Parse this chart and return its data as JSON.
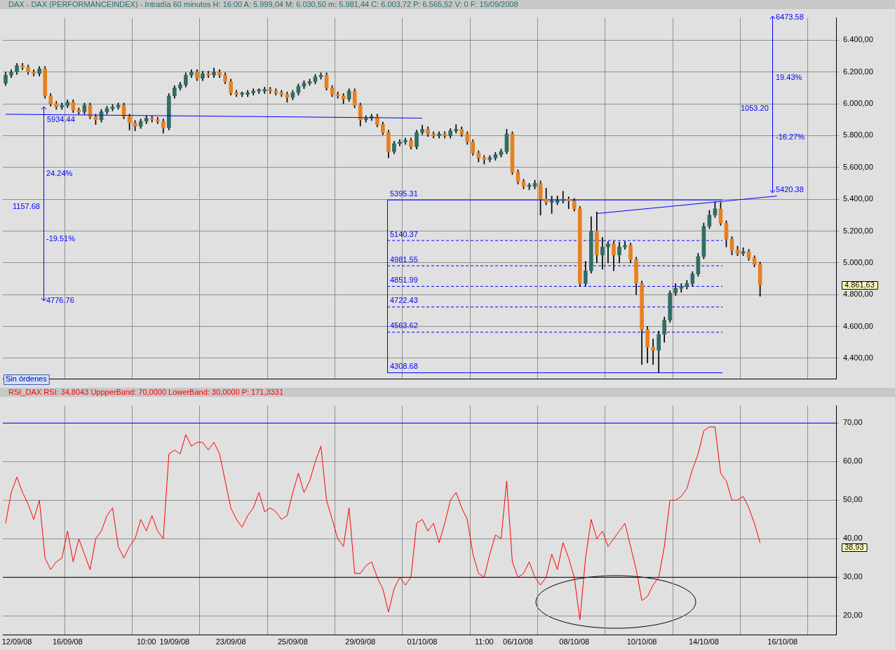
{
  "chart_data": [
    {
      "type": "candlestick",
      "title": "DAX - DAX (PERFORMANCEINDEX) - Intradía 60 minutos  H: 16:00  A: 5.999,04  M: 6.030,50  m: 5.981,44  C: 6.003,72  P: 6.565,52  V: 0  F: 15/09/2008",
      "categories": [
        null,
        null,
        null,
        null,
        null,
        null,
        null,
        null,
        null,
        null,
        null,
        null,
        null,
        null,
        null,
        null,
        null,
        null,
        null,
        null,
        null,
        null,
        null,
        null,
        null,
        null,
        null,
        null,
        null,
        null,
        null,
        null,
        null,
        null,
        null,
        null,
        null,
        null,
        null,
        null,
        null,
        null,
        null,
        null,
        null,
        null,
        null,
        null,
        null,
        null,
        null,
        null,
        null,
        null,
        null,
        null,
        null,
        null,
        null,
        null,
        null,
        null,
        null,
        null,
        null,
        null,
        null,
        null,
        null,
        null,
        null,
        null,
        null,
        null,
        null,
        null,
        null,
        null,
        null,
        null,
        null,
        null,
        null,
        null,
        null,
        null,
        null,
        null,
        null,
        null,
        null,
        null,
        null,
        null,
        null,
        null,
        null,
        null,
        null,
        null,
        null,
        null,
        null,
        null,
        null,
        null,
        null,
        null,
        null,
        null,
        null,
        null,
        null,
        null,
        null,
        null,
        null,
        null,
        null,
        null,
        null,
        null,
        null,
        null,
        null,
        null,
        null,
        null,
        null,
        null,
        null,
        null,
        null,
        null,
        null,
        null,
        null,
        null,
        null,
        null,
        null,
        null,
        null,
        null,
        null,
        null,
        null,
        null
      ],
      "ohlc": [
        [
          6130,
          6200,
          6115,
          6180
        ],
        [
          6180,
          6215,
          6165,
          6200
        ],
        [
          6200,
          6255,
          6185,
          6240
        ],
        [
          6240,
          6255,
          6215,
          6230
        ],
        [
          6230,
          6245,
          6185,
          6200
        ],
        [
          6200,
          6215,
          6175,
          6190
        ],
        [
          6190,
          6235,
          6175,
          6220
        ],
        [
          6220,
          6235,
          6035,
          6050
        ],
        [
          6050,
          6065,
          5985,
          6000
        ],
        [
          6000,
          6015,
          5965,
          5980
        ],
        [
          5980,
          6005,
          5965,
          5990
        ],
        [
          5990,
          6025,
          5975,
          6010
        ],
        [
          6010,
          6025,
          5945,
          5960
        ],
        [
          5960,
          5975,
          5935,
          5950
        ],
        [
          5950,
          6005,
          5935,
          5990
        ],
        [
          5990,
          6005,
          5905,
          5920
        ],
        [
          5920,
          5935,
          5870,
          5900
        ],
        [
          5900,
          5965,
          5885,
          5950
        ],
        [
          5950,
          5985,
          5935,
          5970
        ],
        [
          5970,
          5995,
          5955,
          5980
        ],
        [
          5980,
          6005,
          5965,
          5990
        ],
        [
          5990,
          6005,
          5905,
          5920
        ],
        [
          5920,
          5935,
          5835,
          5880
        ],
        [
          5880,
          5895,
          5830,
          5860
        ],
        [
          5860,
          5905,
          5845,
          5890
        ],
        [
          5890,
          5925,
          5875,
          5910
        ],
        [
          5910,
          5925,
          5885,
          5900
        ],
        [
          5900,
          5915,
          5875,
          5890
        ],
        [
          5890,
          5905,
          5815,
          5850
        ],
        [
          5850,
          6065,
          5835,
          6050
        ],
        [
          6050,
          6115,
          6035,
          6100
        ],
        [
          6100,
          6135,
          6085,
          6120
        ],
        [
          6120,
          6195,
          6105,
          6180
        ],
        [
          6180,
          6215,
          6165,
          6200
        ],
        [
          6200,
          6215,
          6145,
          6160
        ],
        [
          6160,
          6205,
          6145,
          6190
        ],
        [
          6190,
          6205,
          6165,
          6180
        ],
        [
          6180,
          6225,
          6165,
          6200
        ],
        [
          6200,
          6215,
          6165,
          6180
        ],
        [
          6180,
          6195,
          6125,
          6140
        ],
        [
          6140,
          6155,
          6055,
          6070
        ],
        [
          6070,
          6085,
          6045,
          6060
        ],
        [
          6060,
          6075,
          6045,
          6065
        ],
        [
          6060,
          6085,
          6045,
          6070
        ],
        [
          6070,
          6095,
          6055,
          6080
        ],
        [
          6080,
          6095,
          6065,
          6085
        ],
        [
          6080,
          6105,
          6065,
          6090
        ],
        [
          6090,
          6105,
          6065,
          6080
        ],
        [
          6080,
          6095,
          6055,
          6070
        ],
        [
          6070,
          6085,
          6045,
          6060
        ],
        [
          6060,
          6075,
          6010,
          6040
        ],
        [
          6040,
          6085,
          6025,
          6070
        ],
        [
          6070,
          6125,
          6055,
          6110
        ],
        [
          6110,
          6145,
          6095,
          6130
        ],
        [
          6130,
          6155,
          6115,
          6140
        ],
        [
          6140,
          6185,
          6125,
          6170
        ],
        [
          6170,
          6195,
          6155,
          6180
        ],
        [
          6180,
          6195,
          6085,
          6100
        ],
        [
          6100,
          6115,
          6045,
          6060
        ],
        [
          6060,
          6075,
          6035,
          6050
        ],
        [
          6050,
          6065,
          6000,
          6030
        ],
        [
          6030,
          6095,
          6015,
          6080
        ],
        [
          6080,
          6095,
          5975,
          5990
        ],
        [
          5990,
          6005,
          5860,
          5900
        ],
        [
          5900,
          5925,
          5885,
          5910
        ],
        [
          5910,
          5935,
          5895,
          5920
        ],
        [
          5920,
          5935,
          5855,
          5870
        ],
        [
          5870,
          5885,
          5805,
          5820
        ],
        [
          5820,
          5835,
          5660,
          5700
        ],
        [
          5700,
          5765,
          5685,
          5750
        ],
        [
          5750,
          5775,
          5735,
          5760
        ],
        [
          5760,
          5785,
          5745,
          5770
        ],
        [
          5770,
          5785,
          5715,
          5730
        ],
        [
          5730,
          5835,
          5715,
          5820
        ],
        [
          5820,
          5865,
          5805,
          5840
        ],
        [
          5840,
          5855,
          5795,
          5810
        ],
        [
          5810,
          5825,
          5785,
          5800
        ],
        [
          5800,
          5825,
          5785,
          5810
        ],
        [
          5810,
          5825,
          5785,
          5800
        ],
        [
          5800,
          5845,
          5785,
          5830
        ],
        [
          5830,
          5870,
          5815,
          5840
        ],
        [
          5840,
          5855,
          5795,
          5810
        ],
        [
          5810,
          5825,
          5745,
          5760
        ],
        [
          5760,
          5775,
          5675,
          5690
        ],
        [
          5690,
          5705,
          5635,
          5660
        ],
        [
          5660,
          5675,
          5620,
          5650
        ],
        [
          5650,
          5675,
          5635,
          5660
        ],
        [
          5660,
          5695,
          5645,
          5680
        ],
        [
          5680,
          5715,
          5665,
          5700
        ],
        [
          5700,
          5840,
          5685,
          5810
        ],
        [
          5810,
          5825,
          5555,
          5570
        ],
        [
          5570,
          5585,
          5495,
          5510
        ],
        [
          5510,
          5525,
          5465,
          5480
        ],
        [
          5480,
          5500,
          5460,
          5485
        ],
        [
          5480,
          5520,
          5465,
          5500
        ],
        [
          5500,
          5515,
          5300,
          5400
        ],
        [
          5400,
          5470,
          5365,
          5380
        ],
        [
          5380,
          5420,
          5310,
          5385
        ],
        [
          5380,
          5420,
          5365,
          5390
        ],
        [
          5390,
          5450,
          5375,
          5400
        ],
        [
          5400,
          5415,
          5340,
          5390
        ],
        [
          5390,
          5405,
          5325,
          5340
        ],
        [
          5340,
          5355,
          4855,
          4870
        ],
        [
          4870,
          5010,
          4855,
          4950
        ],
        [
          4950,
          5290,
          4935,
          5200
        ],
        [
          5200,
          5320,
          5000,
          5050
        ],
        [
          5050,
          5160,
          4960,
          5100
        ],
        [
          5100,
          5135,
          5000,
          5120
        ],
        [
          5120,
          5135,
          4950,
          5050
        ],
        [
          5050,
          5130,
          5000,
          5100
        ],
        [
          5100,
          5135,
          5085,
          5110
        ],
        [
          5110,
          5125,
          5000,
          5020
        ],
        [
          5020,
          5035,
          4800,
          4870
        ],
        [
          4870,
          4885,
          4360,
          4580
        ],
        [
          4580,
          4600,
          4370,
          4470
        ],
        [
          4470,
          4520,
          4360,
          4450
        ],
        [
          4450,
          4570,
          4308.68,
          4550
        ],
        [
          4550,
          4660,
          4500,
          4640
        ],
        [
          4640,
          4825,
          4625,
          4810
        ],
        [
          4810,
          4870,
          4795,
          4840
        ],
        [
          4840,
          4870,
          4815,
          4850
        ],
        [
          4850,
          4890,
          4835,
          4870
        ],
        [
          4870,
          4945,
          4855,
          4930
        ],
        [
          4930,
          5060,
          4915,
          5040
        ],
        [
          5040,
          5250,
          5025,
          5230
        ],
        [
          5230,
          5330,
          5215,
          5300
        ],
        [
          5300,
          5385,
          5285,
          5340
        ],
        [
          5340,
          5380,
          5235,
          5250
        ],
        [
          5250,
          5265,
          5100,
          5150
        ],
        [
          5150,
          5165,
          5050,
          5080
        ],
        [
          5080,
          5105,
          5045,
          5060
        ],
        [
          5060,
          5095,
          5045,
          5070
        ],
        [
          5070,
          5085,
          5015,
          5030
        ],
        [
          5030,
          5045,
          4975,
          4990
        ],
        [
          4990,
          5005,
          4790,
          4861.63
        ],
        null,
        null,
        null,
        null,
        null,
        null,
        null,
        null,
        null,
        null,
        null,
        null,
        null
      ],
      "series": [
        {
          "type": "line",
          "color": "#0000ff",
          "values": [
            5934.44,
            null,
            null,
            null,
            null,
            null,
            null,
            null,
            null,
            null,
            null,
            null,
            null,
            null,
            null,
            null,
            null,
            null,
            null,
            null,
            null,
            null,
            null,
            null,
            null,
            null,
            null,
            null,
            null,
            null,
            null,
            null,
            null,
            null,
            null,
            null,
            null,
            null,
            null,
            null,
            null,
            null,
            null,
            null,
            null,
            null,
            null,
            null,
            null,
            null,
            null,
            null,
            null,
            null,
            null,
            null,
            null,
            null,
            null,
            null,
            null,
            null,
            null,
            null,
            null,
            null,
            null,
            null,
            null,
            null,
            null,
            null,
            null,
            null,
            5910,
            null,
            null,
            null,
            null,
            null,
            null,
            null,
            null,
            null,
            null,
            null,
            null,
            null,
            null,
            null,
            null,
            null,
            null,
            null,
            null,
            null,
            null,
            null,
            null,
            null,
            null,
            null,
            null,
            null,
            null,
            null,
            null,
            null,
            null,
            null,
            null,
            null,
            null,
            null,
            null,
            null,
            null,
            null,
            null,
            null,
            null,
            null,
            null,
            null,
            null,
            null,
            null,
            null,
            null,
            null,
            null,
            null,
            null,
            null,
            null,
            null,
            null,
            null,
            null,
            null,
            null,
            null,
            null,
            null,
            null,
            null,
            null,
            null
          ]
        },
        {
          "type": "line",
          "color": "#0000ff",
          "values": [
            null,
            null,
            null,
            null,
            null,
            null,
            null,
            null,
            null,
            null,
            null,
            null,
            null,
            null,
            null,
            null,
            null,
            null,
            null,
            null,
            null,
            null,
            null,
            null,
            null,
            null,
            null,
            null,
            null,
            null,
            null,
            null,
            null,
            null,
            null,
            null,
            null,
            null,
            null,
            null,
            null,
            null,
            null,
            null,
            null,
            null,
            null,
            null,
            null,
            null,
            null,
            null,
            null,
            null,
            null,
            null,
            null,
            null,
            null,
            null,
            null,
            null,
            null,
            null,
            null,
            null,
            null,
            null,
            null,
            null,
            null,
            null,
            null,
            null,
            null,
            null,
            null,
            null,
            null,
            null,
            null,
            null,
            null,
            null,
            null,
            null,
            null,
            null,
            null,
            null,
            null,
            null,
            null,
            null,
            null,
            null,
            null,
            null,
            null,
            null,
            null,
            null,
            null,
            null,
            null,
            5310,
            null,
            null,
            null,
            null,
            null,
            null,
            null,
            null,
            null,
            null,
            null,
            null,
            null,
            null,
            null,
            null,
            null,
            null,
            null,
            null,
            null,
            null,
            null,
            null,
            null,
            null,
            null,
            null,
            null,
            null,
            null,
            5420.38,
            null,
            null,
            null,
            null,
            null,
            null,
            null,
            null,
            null,
            null
          ]
        }
      ],
      "ylim": [
        4270,
        6540
      ],
      "yticks": [
        {
          "value": 4400,
          "label": "4.400,00"
        },
        {
          "value": 4600,
          "label": "4.600,00"
        },
        {
          "value": 4800,
          "label": "4.800,00"
        },
        {
          "value": 5000,
          "label": "5.000,00"
        },
        {
          "value": 5200,
          "label": "5.200,00"
        },
        {
          "value": 5400,
          "label": "5.400,00"
        },
        {
          "value": 5600,
          "label": "5.600,00"
        },
        {
          "value": 5800,
          "label": "5.800,00"
        },
        {
          "value": 6000,
          "label": "6.000,00"
        },
        {
          "value": 6200,
          "label": "6.200,00"
        },
        {
          "value": 6400,
          "label": "6.400,00"
        }
      ],
      "ref_lines": [
        {
          "axis": "y",
          "value": 5395.31,
          "label": "5395.31",
          "color": "#0000ff",
          "line_style": "solid"
        },
        {
          "axis": "y",
          "value": 5140.37,
          "label": "5140.37",
          "color": "#0000ff",
          "line_style": "dashed"
        },
        {
          "axis": "y",
          "value": 4981.55,
          "label": "4981.55",
          "color": "#0000ff",
          "line_style": "dashed"
        },
        {
          "axis": "y",
          "value": 4851.99,
          "label": "4851.99",
          "color": "#0000ff",
          "line_style": "dashed"
        },
        {
          "axis": "y",
          "value": 4722.43,
          "label": "4722.43",
          "color": "#0000ff",
          "line_style": "dashed"
        },
        {
          "axis": "y",
          "value": 4563.62,
          "label": "4563.62",
          "color": "#0000ff",
          "line_style": "dashed"
        },
        {
          "axis": "y",
          "value": 4308.68,
          "label": "4308.68",
          "color": "#0000ff",
          "line_style": "solid"
        }
      ],
      "annotations": [
        "5934.44",
        "4776.76",
        "24.24%",
        "1157.68",
        "-19.51%",
        "6473.58",
        "19.43%",
        "1053.20",
        "-16.27%",
        "5420.38",
        "4.861,63",
        "Sin órdenes"
      ],
      "grid": true,
      "legend": false,
      "tick_labels": "y"
    },
    {
      "type": "line",
      "title": "RSI_DAX  RSI: 34,8043  UppperBand: 70,0000  LowerBand: 30,0000  P: 171,3331",
      "categories": [
        null,
        null,
        "12/09/08",
        null,
        null,
        null,
        null,
        null,
        null,
        null,
        null,
        "16/09/08",
        null,
        null,
        null,
        null,
        null,
        null,
        null,
        null,
        null,
        null,
        null,
        null,
        null,
        "10:00",
        null,
        null,
        null,
        null,
        "19/09/08",
        null,
        null,
        null,
        null,
        null,
        null,
        null,
        null,
        null,
        "23/09/08",
        null,
        null,
        null,
        null,
        null,
        null,
        null,
        null,
        null,
        null,
        "25/09/08",
        null,
        null,
        null,
        null,
        null,
        null,
        null,
        null,
        null,
        null,
        null,
        "29/09/08",
        null,
        null,
        null,
        null,
        null,
        null,
        null,
        null,
        null,
        null,
        "01/10/08",
        null,
        null,
        null,
        null,
        null,
        null,
        null,
        null,
        null,
        null,
        "11:00",
        null,
        null,
        null,
        null,
        null,
        "06/10/08",
        null,
        null,
        null,
        null,
        null,
        null,
        null,
        null,
        null,
        "08/10/08",
        null,
        null,
        null,
        null,
        null,
        null,
        null,
        null,
        null,
        null,
        null,
        "10/10/08",
        null,
        null,
        null,
        null,
        null,
        null,
        null,
        null,
        null,
        null,
        "14/10/08",
        null,
        null,
        null,
        null,
        null,
        null,
        null,
        null,
        null,
        null,
        null,
        null,
        null,
        "16/10/08",
        null,
        null,
        null,
        null,
        null,
        null,
        null,
        null,
        null
      ],
      "series": [
        {
          "color": "#ff0000",
          "values": [
            44,
            52,
            56,
            52,
            49,
            45,
            50,
            35,
            32,
            34,
            35,
            42,
            34,
            40,
            36,
            32,
            40,
            42,
            46,
            48,
            38,
            35,
            38,
            40,
            45,
            42,
            46,
            42,
            40,
            62,
            63,
            62,
            67,
            64,
            65,
            65,
            63,
            65,
            62,
            55,
            48,
            45,
            43,
            46,
            48,
            52,
            47,
            48,
            47,
            45,
            46,
            52,
            57,
            52,
            55,
            60,
            64,
            50,
            45,
            40,
            38,
            48,
            31,
            31,
            33,
            34,
            30,
            27,
            21,
            27,
            30,
            28,
            30,
            44,
            45,
            42,
            44,
            39,
            44,
            50,
            52,
            48,
            45,
            36,
            31,
            30,
            36,
            41,
            40,
            55,
            34,
            30,
            31,
            34,
            30,
            28,
            30,
            36,
            32,
            39,
            35,
            30,
            19,
            35,
            45,
            40,
            42,
            38,
            40,
            42,
            44,
            38,
            32,
            24,
            25,
            28,
            30,
            38,
            50,
            50,
            51,
            53,
            58,
            62,
            68,
            69,
            69,
            57,
            55,
            50,
            50,
            51,
            48,
            44,
            38.93,
            null,
            null,
            null,
            null,
            null,
            null,
            null,
            null,
            null,
            null,
            null,
            null,
            null
          ]
        }
      ],
      "ylim": [
        15,
        74.5
      ],
      "yticks": [
        {
          "value": 20,
          "label": "20,00"
        },
        {
          "value": 30,
          "label": "30,00"
        },
        {
          "value": 40,
          "label": "40,00"
        },
        {
          "value": 50,
          "label": "50,00"
        },
        {
          "value": 60,
          "label": "60,00"
        },
        {
          "value": 70,
          "label": "70,00"
        }
      ],
      "ref_lines": [
        {
          "axis": "y",
          "value": 70,
          "color": "#0000ff",
          "line_style": "solid"
        },
        {
          "axis": "y",
          "value": 30,
          "color": "#000000",
          "line_style": "solid"
        }
      ],
      "annotations": [
        "38,93"
      ],
      "grid": true,
      "legend": false,
      "marker": "none"
    }
  ]
}
